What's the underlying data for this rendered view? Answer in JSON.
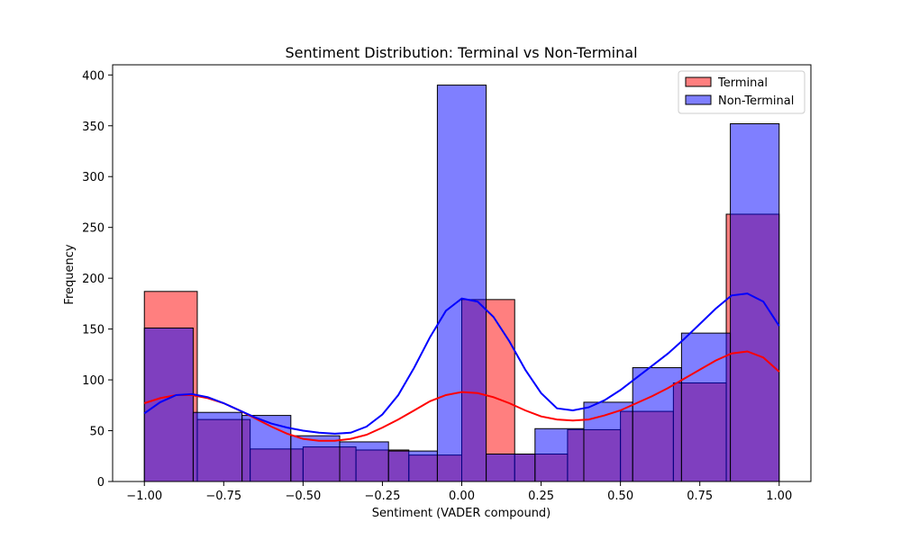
{
  "chart_data": {
    "type": "bar",
    "title": "Sentiment Distribution: Terminal vs Non-Terminal",
    "xlabel": "Sentiment (VADER compound)",
    "ylabel": "Frequency",
    "xlim": [
      -1.1,
      1.1
    ],
    "ylim": [
      0,
      410
    ],
    "xticks": [
      -1.0,
      -0.75,
      -0.5,
      -0.25,
      0.0,
      0.25,
      0.5,
      0.75,
      1.0
    ],
    "xtick_labels": [
      "−1.00",
      "−0.75",
      "−0.50",
      "−0.25",
      "0.00",
      "0.25",
      "0.50",
      "0.75",
      "1.00"
    ],
    "yticks": [
      0,
      50,
      100,
      150,
      200,
      250,
      300,
      350,
      400
    ],
    "ytick_labels": [
      "0",
      "50",
      "100",
      "150",
      "200",
      "250",
      "300",
      "350",
      "400"
    ],
    "legend_position": "top-right",
    "series": [
      {
        "name": "Terminal",
        "color": "#ff0000",
        "bin_edges": [
          -1.0,
          -0.8333,
          -0.6667,
          -0.5,
          -0.3333,
          -0.1667,
          0.0,
          0.1667,
          0.3333,
          0.5,
          0.6667,
          0.8333,
          1.0
        ],
        "values": [
          187,
          61,
          32,
          34,
          31,
          26,
          179,
          27,
          51,
          69,
          97,
          263
        ],
        "kde": [
          [
            -1.0,
            77
          ],
          [
            -0.95,
            82
          ],
          [
            -0.9,
            85
          ],
          [
            -0.85,
            85
          ],
          [
            -0.8,
            82
          ],
          [
            -0.75,
            77
          ],
          [
            -0.7,
            70
          ],
          [
            -0.65,
            62
          ],
          [
            -0.6,
            54
          ],
          [
            -0.55,
            47
          ],
          [
            -0.5,
            42
          ],
          [
            -0.45,
            40
          ],
          [
            -0.4,
            40
          ],
          [
            -0.35,
            42
          ],
          [
            -0.3,
            46
          ],
          [
            -0.25,
            53
          ],
          [
            -0.2,
            61
          ],
          [
            -0.15,
            70
          ],
          [
            -0.1,
            79
          ],
          [
            -0.05,
            85
          ],
          [
            0.0,
            88
          ],
          [
            0.05,
            87
          ],
          [
            0.1,
            83
          ],
          [
            0.15,
            77
          ],
          [
            0.2,
            70
          ],
          [
            0.25,
            64
          ],
          [
            0.3,
            61
          ],
          [
            0.35,
            60
          ],
          [
            0.4,
            61
          ],
          [
            0.45,
            65
          ],
          [
            0.5,
            70
          ],
          [
            0.55,
            77
          ],
          [
            0.6,
            84
          ],
          [
            0.65,
            92
          ],
          [
            0.7,
            101
          ],
          [
            0.75,
            110
          ],
          [
            0.8,
            119
          ],
          [
            0.85,
            126
          ],
          [
            0.9,
            128
          ],
          [
            0.95,
            122
          ],
          [
            1.0,
            108
          ]
        ]
      },
      {
        "name": "Non-Terminal",
        "color": "#0000ff",
        "bin_edges": [
          -1.0,
          -0.8462,
          -0.6923,
          -0.5385,
          -0.3846,
          -0.2308,
          -0.0769,
          0.0769,
          0.2308,
          0.3846,
          0.5385,
          0.6923,
          0.8462,
          1.0
        ],
        "values": [
          151,
          68,
          65,
          45,
          39,
          30,
          390,
          27,
          52,
          78,
          112,
          146,
          352
        ],
        "kde": [
          [
            -1.0,
            67
          ],
          [
            -0.95,
            78
          ],
          [
            -0.9,
            85
          ],
          [
            -0.85,
            86
          ],
          [
            -0.8,
            83
          ],
          [
            -0.75,
            77
          ],
          [
            -0.7,
            70
          ],
          [
            -0.65,
            63
          ],
          [
            -0.6,
            57
          ],
          [
            -0.55,
            53
          ],
          [
            -0.5,
            50
          ],
          [
            -0.45,
            48
          ],
          [
            -0.4,
            47
          ],
          [
            -0.35,
            48
          ],
          [
            -0.3,
            54
          ],
          [
            -0.25,
            66
          ],
          [
            -0.2,
            85
          ],
          [
            -0.15,
            112
          ],
          [
            -0.1,
            142
          ],
          [
            -0.05,
            168
          ],
          [
            0.0,
            180
          ],
          [
            0.05,
            177
          ],
          [
            0.1,
            162
          ],
          [
            0.15,
            138
          ],
          [
            0.2,
            110
          ],
          [
            0.25,
            87
          ],
          [
            0.3,
            72
          ],
          [
            0.35,
            70
          ],
          [
            0.4,
            73
          ],
          [
            0.45,
            80
          ],
          [
            0.5,
            90
          ],
          [
            0.55,
            102
          ],
          [
            0.6,
            114
          ],
          [
            0.65,
            126
          ],
          [
            0.7,
            140
          ],
          [
            0.75,
            155
          ],
          [
            0.8,
            170
          ],
          [
            0.85,
            183
          ],
          [
            0.9,
            185
          ],
          [
            0.95,
            177
          ],
          [
            1.0,
            153
          ]
        ]
      }
    ]
  }
}
